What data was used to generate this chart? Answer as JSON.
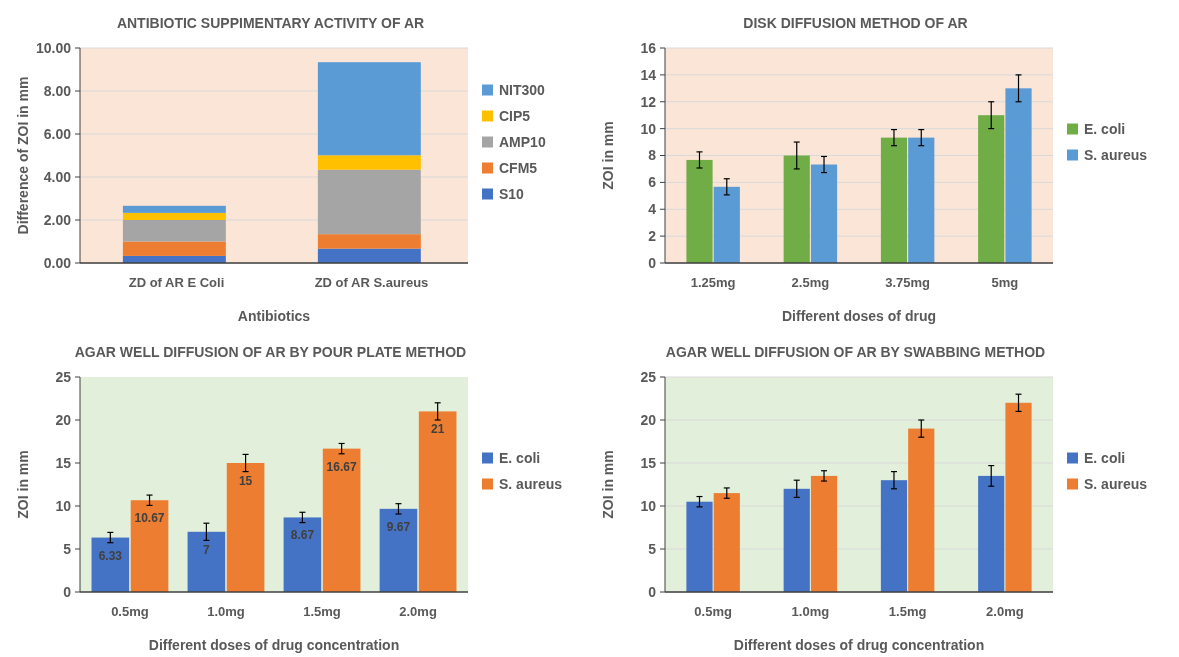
{
  "chart_data": [
    {
      "type": "bar",
      "title": "ANTIBIOTIC SUPPIMENTARY ACTIVITY OF AR",
      "xlabel": "Antibiotics",
      "ylabel": "Difference of ZOI in mm",
      "categories": [
        "ZD of AR  E Coli",
        "ZD of AR S.aureus"
      ],
      "stacked": true,
      "series": [
        {
          "name": "S10",
          "color": "#4472c4",
          "values": [
            0.33,
            0.67
          ]
        },
        {
          "name": "CFM5",
          "color": "#ed7d31",
          "values": [
            0.67,
            0.67
          ]
        },
        {
          "name": "AMP10",
          "color": "#a5a5a5",
          "values": [
            1.0,
            3.0
          ]
        },
        {
          "name": "CIP5",
          "color": "#ffc000",
          "values": [
            0.33,
            0.67
          ]
        },
        {
          "name": "NIT300",
          "color": "#5b9bd5",
          "values": [
            0.33,
            4.33
          ]
        }
      ],
      "ylim": [
        0,
        10
      ],
      "yticks": [
        {
          "value": 0,
          "label": "0.00"
        },
        {
          "value": 2,
          "label": "2.00"
        },
        {
          "value": 4,
          "label": "4.00"
        },
        {
          "value": 6,
          "label": "6.00"
        },
        {
          "value": 8,
          "label": "8.00"
        },
        {
          "value": 10,
          "label": "10.00"
        }
      ],
      "grid": "y",
      "legend": "right"
    },
    {
      "type": "bar",
      "title": "DISK DIFFUSION METHOD OF AR",
      "xlabel": "Different doses of drug",
      "ylabel": "ZOI in mm",
      "categories": [
        "1.25mg",
        "2.5mg",
        "3.75mg",
        "5mg"
      ],
      "series": [
        {
          "name": "E. coli",
          "color": "#70ad47",
          "values": [
            7.67,
            8,
            9.33,
            11
          ],
          "errors": [
            0.6,
            1,
            0.6,
            1
          ]
        },
        {
          "name": "S. aureus",
          "color": "#5b9bd5",
          "values": [
            5.67,
            7.33,
            9.33,
            13
          ],
          "errors": [
            0.6,
            0.6,
            0.6,
            1
          ]
        }
      ],
      "ylim": [
        0,
        16
      ],
      "yticks": [
        0,
        2,
        4,
        6,
        8,
        10,
        12,
        14,
        16
      ],
      "grid": "y",
      "legend": "right"
    },
    {
      "type": "bar",
      "title": "AGAR WELL DIFFUSION OF AR BY POUR PLATE METHOD",
      "xlabel": "Different doses of drug concentration",
      "ylabel": "ZOI in mm",
      "categories": [
        "0.5mg",
        "1.0mg",
        "1.5mg",
        "2.0mg"
      ],
      "series": [
        {
          "name": "E. coli",
          "color": "#4472c4",
          "values": [
            6.33,
            7,
            8.67,
            9.67
          ],
          "errors": [
            0.6,
            1,
            0.6,
            0.6
          ]
        },
        {
          "name": "S. aureus",
          "color": "#ed7d31",
          "values": [
            10.67,
            15,
            16.67,
            21
          ],
          "errors": [
            0.6,
            1,
            0.6,
            1
          ]
        }
      ],
      "ylim": [
        0,
        25
      ],
      "yticks": [
        0,
        5,
        10,
        15,
        20,
        25
      ],
      "data_labels": true,
      "legend": "right"
    },
    {
      "type": "bar",
      "title": "AGAR WELL DIFFUSION OF AR BY SWABBING METHOD",
      "xlabel": "Different doses of drug concentration",
      "ylabel": "ZOI in mm",
      "categories": [
        "0.5mg",
        "1.0mg",
        "1.5mg",
        "2.0mg"
      ],
      "series": [
        {
          "name": "E. coli",
          "color": "#4472c4",
          "values": [
            10.5,
            12,
            13,
            13.5
          ],
          "errors": [
            0.6,
            1,
            1,
            1.2
          ]
        },
        {
          "name": "S. aureus",
          "color": "#ed7d31",
          "values": [
            11.5,
            13.5,
            19,
            22
          ],
          "errors": [
            0.6,
            0.6,
            1,
            1
          ]
        }
      ],
      "ylim": [
        0,
        25
      ],
      "yticks": [
        0,
        5,
        10,
        15,
        20,
        25
      ],
      "grid": "y",
      "legend": "right"
    }
  ]
}
